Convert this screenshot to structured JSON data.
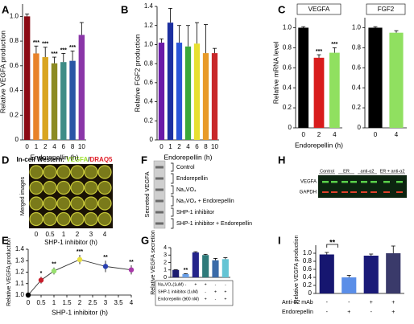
{
  "chart_data": [
    {
      "type": "bar",
      "panel_label": "A",
      "ylabel": "Relative VEGFA production",
      "xlabel": "Endorepellin (h)",
      "categories": [
        "0",
        "1",
        "2",
        "4",
        "6",
        "8",
        "10"
      ],
      "values": [
        1.0,
        0.7,
        0.67,
        0.62,
        0.63,
        0.64,
        0.85
      ],
      "errors": [
        0.02,
        0.06,
        0.08,
        0.05,
        0.07,
        0.08,
        0.1
      ],
      "colors": [
        "#8b0a14",
        "#e8822a",
        "#d9a520",
        "#8c8a22",
        "#3e8c86",
        "#2a55a5",
        "#8a36a8"
      ],
      "annotations": [
        null,
        "***",
        "***",
        "***",
        "***",
        "***",
        null
      ],
      "ylim": [
        0,
        1.1
      ],
      "yticks": [
        0,
        0.2,
        0.4,
        0.6,
        0.8,
        {
          "value": 1,
          "label": "1.0"
        }
      ]
    },
    {
      "type": "bar",
      "panel_label": "B",
      "ylabel": "Relative FGF2 production",
      "xlabel": "Endorepellin (h)",
      "categories": [
        "0",
        "1",
        "2",
        "4",
        "6",
        "8",
        "10"
      ],
      "values": [
        1.02,
        1.23,
        1.02,
        0.98,
        1.01,
        0.91,
        0.91
      ],
      "errors": [
        0.04,
        0.15,
        0.18,
        0.22,
        0.22,
        0.3,
        0.05
      ],
      "colors": [
        "#6a1aa8",
        "#1c2fa0",
        "#2a55d8",
        "#3aa83a",
        "#e8e030",
        "#e89a28",
        "#c8282a"
      ],
      "ylim": [
        0,
        1.4
      ],
      "yticks": [
        0,
        0.2,
        0.4,
        0.6,
        0.8,
        {
          "value": 1,
          "label": "1.0"
        },
        1.2,
        1.4
      ]
    },
    {
      "type": "bar",
      "panel_label": "C",
      "title": "VEGFA",
      "ylabel": "Relative mRNA level",
      "xlabel": "Endorepellin (h)",
      "categories": [
        "0",
        "2",
        "4"
      ],
      "values": [
        1.0,
        0.7,
        0.75
      ],
      "errors": [
        0.01,
        0.03,
        0.05
      ],
      "colors": [
        "#000000",
        "#d81c1c",
        "#90e060"
      ],
      "annotations": [
        null,
        "***",
        "***"
      ],
      "ylim": [
        0,
        1.1
      ],
      "yticks": [
        0,
        0.2,
        0.4,
        0.6,
        0.8,
        {
          "value": 1,
          "label": "1.0"
        }
      ]
    },
    {
      "type": "bar",
      "title": "FGF2",
      "categories": [
        "0",
        "4"
      ],
      "values": [
        1.0,
        0.95
      ],
      "errors": [
        0.01,
        0.02
      ],
      "colors": [
        "#000000",
        "#90e060"
      ],
      "ylim": [
        0,
        1.1
      ],
      "yticks": [
        0,
        0.2,
        0.4,
        0.6,
        0.8,
        {
          "value": 1,
          "label": "1.0"
        }
      ]
    },
    {
      "type": "line",
      "panel_label": "E",
      "ylabel": "Relative VEGFA production",
      "xlabel": "SHP-1 inhibitor (h)",
      "x": [
        0,
        0.5,
        1,
        2,
        3,
        4
      ],
      "values": [
        1.0,
        1.13,
        1.21,
        1.31,
        1.25,
        1.22
      ],
      "errors": [
        0,
        0.03,
        0.03,
        0.04,
        0.05,
        0.04
      ],
      "colors": [
        "#000000",
        "#c81c2a",
        "#98e070",
        "#e8e040",
        "#2a40b0",
        "#a838a8"
      ],
      "annotations": [
        null,
        "*",
        "**",
        "***",
        "**",
        "**"
      ],
      "xlim": [
        0,
        4
      ],
      "xticks": [
        0,
        0.5,
        1,
        1.5,
        2,
        2.5,
        3,
        3.5,
        4
      ],
      "ylim": [
        1.0,
        1.4
      ],
      "yticks": [
        {
          "value": 1,
          "label": "1.0"
        },
        1.1,
        1.2,
        1.3,
        1.4
      ]
    },
    {
      "type": "bar",
      "panel_label": "G",
      "ylabel": "Relative VEGFA secretion",
      "categories": [
        null,
        null,
        null,
        null,
        null,
        null
      ],
      "values": [
        1.0,
        0.45,
        3.35,
        3.0,
        2.3,
        2.45
      ],
      "errors": [
        0.05,
        0.05,
        0.1,
        0.1,
        0.25,
        0.2
      ],
      "colors": [
        "#1c1c70",
        "#6aa0e8",
        "#24248a",
        "#2e7a7a",
        "#3a6aa8",
        "#64c4d4"
      ],
      "annotations": [
        null,
        "**",
        null,
        null,
        null,
        null
      ],
      "treatments": [
        {
          "label": "Na₃VO₄(1uM)",
          "signs": [
            "-",
            "-",
            "+",
            "+",
            "-",
            "-"
          ]
        },
        {
          "label": "SHP-1 inhibitor (1uM)",
          "signs": [
            "-",
            "-",
            "-",
            "-",
            "+",
            "+"
          ]
        },
        {
          "label": "Endorepellin (100 nM)",
          "signs": [
            "-",
            "+",
            "-",
            "+",
            "-",
            "+"
          ]
        }
      ],
      "ylim": [
        0,
        4
      ],
      "yticks": [
        0,
        1,
        2,
        3,
        4
      ]
    },
    {
      "type": "bar",
      "panel_label": "I",
      "ylabel": "Relative VEGFA production",
      "categories": [
        null,
        null,
        null,
        null
      ],
      "values": [
        0.97,
        0.4,
        0.94,
        1.0
      ],
      "errors": [
        0.05,
        0.05,
        0.04,
        0.18
      ],
      "colors": [
        "#161670",
        "#5a8ee8",
        "#1a1a78",
        "#3a3a6a"
      ],
      "annotations": [
        "**",
        null,
        null,
        null
      ],
      "treatments": [
        {
          "label": "Anti-α2 mAb",
          "signs": [
            "-",
            "-",
            "+",
            "+"
          ]
        },
        {
          "label": "Endorepellin",
          "signs": [
            "-",
            "+",
            "-",
            "+"
          ]
        }
      ],
      "ylim": [
        0,
        1.2
      ],
      "yticks": [
        0,
        0.2,
        0.4,
        0.6,
        0.8,
        {
          "value": 1,
          "label": "1.0"
        }
      ]
    }
  ],
  "figures": {
    "D": {
      "panel_label": "D",
      "title_prefix": "In-cell Western: ",
      "title_green": "VEGFA",
      "title_sep": "/",
      "title_red": "DRAQ5",
      "row_label": "Merged images",
      "columns": [
        "0",
        "0.5",
        "1",
        "2",
        "3",
        "4"
      ],
      "xlabel": "SHP-1 inhibitor (h)"
    },
    "F": {
      "panel_label": "F",
      "ylabel": "Secreted VEGFA",
      "lanes": [
        "Control",
        "Endorepellin",
        "Na₃VO₄",
        "Na₃VO₄ + Endorepellin",
        "SHP-1 inhibitor",
        "SHP-1 inhibitor + Endorepellin"
      ]
    },
    "H": {
      "panel_label": "H",
      "columns": [
        "Control",
        "ER",
        "anti-α2",
        "ER + anti-α2"
      ],
      "rows": [
        "VEGFA",
        "GAPDH"
      ]
    }
  }
}
